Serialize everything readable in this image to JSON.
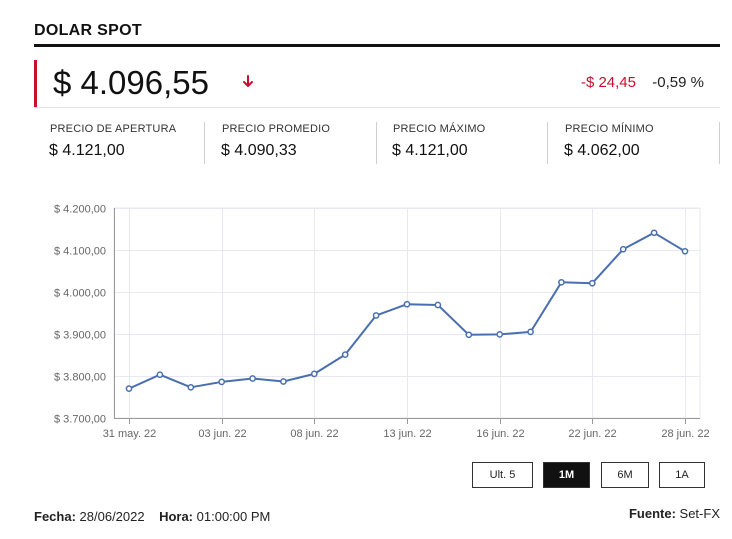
{
  "header": {
    "title": "DOLAR SPOT"
  },
  "price": {
    "value": "$ 4.096,55",
    "direction": "down",
    "change": "-$ 24,45",
    "change_pct": "-0,59 %",
    "down_color": "#c8102e"
  },
  "stats": [
    {
      "label": "PRECIO DE APERTURA",
      "value": "$ 4.121,00"
    },
    {
      "label": "PRECIO PROMEDIO",
      "value": "$ 4.090,33"
    },
    {
      "label": "PRECIO MÁXIMO",
      "value": "$ 4.121,00"
    },
    {
      "label": "PRECIO MÍNIMO",
      "value": "$ 4.062,00"
    }
  ],
  "chart_data": {
    "type": "line",
    "ylim": [
      3700,
      4200
    ],
    "yticks": [
      3700,
      3800,
      3900,
      4000,
      4100,
      4200
    ],
    "ytick_labels": [
      "$ 3.700,00",
      "$ 3.800,00",
      "$ 3.900,00",
      "$ 4.000,00",
      "$ 4.100,00",
      "$ 4.200,00"
    ],
    "xtick_labels": [
      "31 may. 22",
      "03 jun. 22",
      "08 jun. 22",
      "13 jun. 22",
      "16 jun. 22",
      "22 jun. 22",
      "28 jun. 22"
    ],
    "xtick_index": [
      0,
      3,
      6,
      9,
      12,
      15,
      18
    ],
    "grid": true,
    "color": "#4a6fb0",
    "series": [
      {
        "values": [
          3770,
          3803,
          3773,
          3786,
          3794,
          3787,
          3805,
          3851,
          3944,
          3971,
          3969,
          3898,
          3899,
          3905,
          4023,
          4021,
          4102,
          4141,
          4097
        ]
      }
    ]
  },
  "range_buttons": [
    {
      "label": "Ult. 5",
      "active": false
    },
    {
      "label": "1M",
      "active": true
    },
    {
      "label": "6M",
      "active": false
    },
    {
      "label": "1A",
      "active": false
    }
  ],
  "footer": {
    "date_label": "Fecha:",
    "date": "28/06/2022",
    "time_label": "Hora:",
    "time": "01:00:00 PM",
    "source_label": "Fuente:",
    "source": "Set-FX"
  }
}
